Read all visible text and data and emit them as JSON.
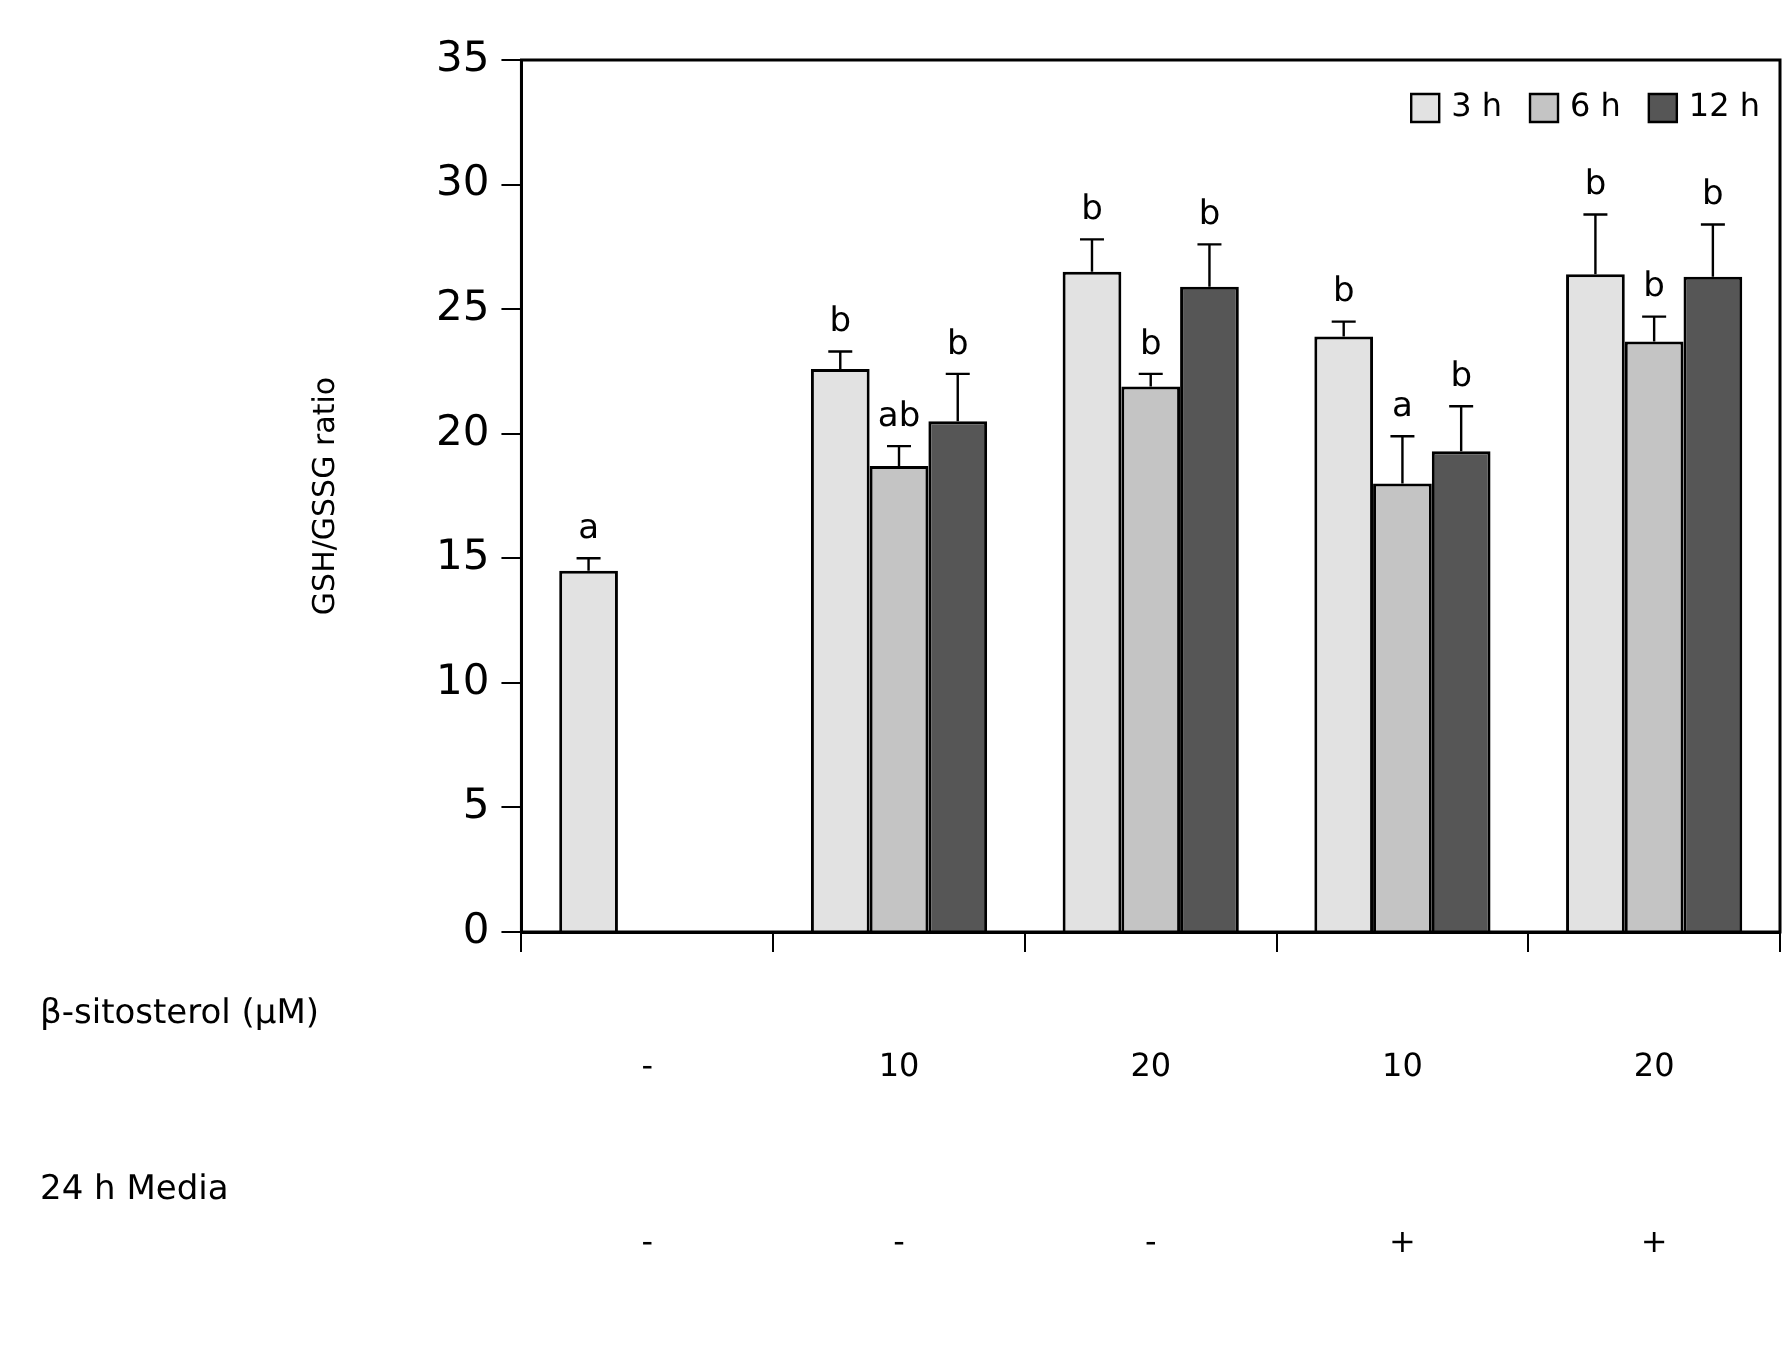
{
  "chart_data": {
    "type": "bar",
    "ylabel": "GSH/GSSG ratio",
    "categories": [
      "-\n-",
      "10\n-",
      "20\n-",
      "10\n+",
      "20\n+"
    ],
    "series": [
      {
        "name": "3 h",
        "color": "#e2e2e2",
        "values": [
          14.5,
          22.6,
          26.5,
          23.9,
          26.4
        ],
        "errors": [
          0.5,
          0.7,
          1.3,
          0.6,
          2.4
        ],
        "value_labels": [
          "a",
          "b",
          "b",
          "b",
          "b"
        ]
      },
      {
        "name": "6 h",
        "color": "#c4c4c4",
        "values": [
          null,
          18.7,
          21.9,
          18.0,
          23.7
        ],
        "errors": [
          null,
          0.8,
          0.5,
          1.9,
          1.0
        ],
        "value_labels": [
          null,
          "ab",
          "b",
          "a",
          "b"
        ]
      },
      {
        "name": "12 h",
        "color": "#565656",
        "values": [
          null,
          20.5,
          25.9,
          19.3,
          26.3
        ],
        "errors": [
          null,
          1.9,
          1.7,
          1.8,
          2.1
        ],
        "value_labels": [
          null,
          "b",
          "b",
          "b",
          "b"
        ]
      }
    ],
    "ylim": [
      0,
      35
    ],
    "yticks": [
      0,
      5,
      10,
      15,
      20,
      25,
      30,
      35
    ],
    "grid": false,
    "legend": "top right",
    "annotations": [
      "β-sitosterol (μM)",
      "24 h Media"
    ]
  }
}
